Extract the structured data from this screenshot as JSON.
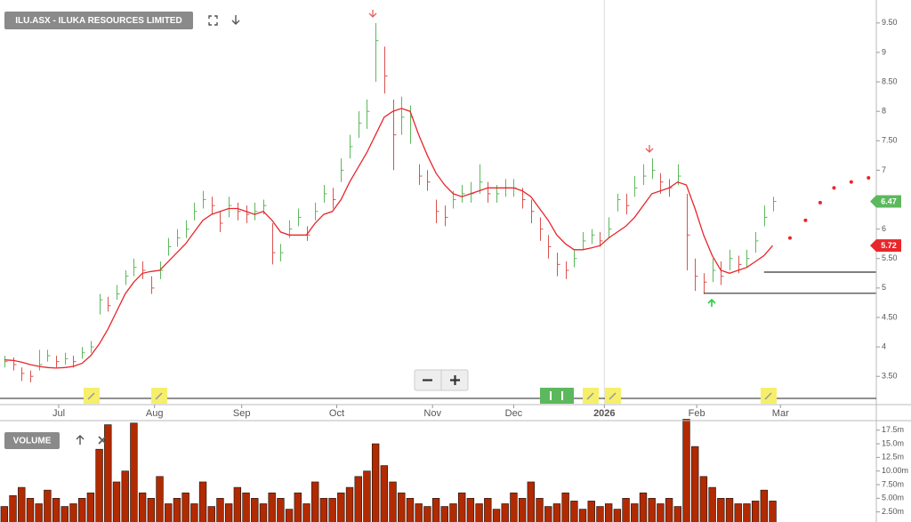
{
  "chart_data": [
    {
      "type": "ohlc",
      "title": "ILU.ASX - ILUKA RESOURCES LIMITED",
      "up_color": "#5cb85c",
      "down_color": "#d9534f",
      "high": [
        3.85,
        3.82,
        3.65,
        3.6,
        3.95,
        3.95,
        3.85,
        3.9,
        3.85,
        4.0,
        4.1,
        4.9,
        4.85,
        5.05,
        5.3,
        5.5,
        5.45,
        5.2,
        5.45,
        5.85,
        6.0,
        6.15,
        6.45,
        6.65,
        6.55,
        6.3,
        6.55,
        6.45,
        6.4,
        6.45,
        6.5,
        6.1,
        5.75,
        6.15,
        6.35,
        6.05,
        6.45,
        6.75,
        6.7,
        7.2,
        7.6,
        8.0,
        8.2,
        9.5,
        9.1,
        8.2,
        8.25,
        8.1,
        7.1,
        7.0,
        6.5,
        6.4,
        6.65,
        6.75,
        6.8,
        7.1,
        6.8,
        6.75,
        6.85,
        6.85,
        6.7,
        6.5,
        6.2,
        5.9,
        5.6,
        5.45,
        5.65,
        5.95,
        6.0,
        5.95,
        6.2,
        6.6,
        6.6,
        6.9,
        7.1,
        7.2,
        6.95,
        6.85,
        7.1,
        6.6,
        5.5,
        5.25,
        5.5,
        5.45,
        5.65,
        5.55,
        5.65,
        5.95,
        6.4,
        6.55
      ],
      "low": [
        3.65,
        3.6,
        3.42,
        3.4,
        3.6,
        3.75,
        3.65,
        3.7,
        3.65,
        3.8,
        3.9,
        4.55,
        4.6,
        4.8,
        5.05,
        5.2,
        5.15,
        4.9,
        5.15,
        5.55,
        5.7,
        5.85,
        6.15,
        6.35,
        6.25,
        5.95,
        6.2,
        6.15,
        6.1,
        6.15,
        6.25,
        5.4,
        5.45,
        5.85,
        6.05,
        5.8,
        6.15,
        6.45,
        6.35,
        6.8,
        7.2,
        7.55,
        7.7,
        8.5,
        8.3,
        7.0,
        7.6,
        7.45,
        6.75,
        6.65,
        6.1,
        6.05,
        6.35,
        6.45,
        6.45,
        6.6,
        6.45,
        6.45,
        6.55,
        6.55,
        6.35,
        6.1,
        5.8,
        5.5,
        5.2,
        5.15,
        5.35,
        5.65,
        5.75,
        5.7,
        5.85,
        6.3,
        6.25,
        6.55,
        6.75,
        6.85,
        6.6,
        6.55,
        6.75,
        5.3,
        4.95,
        4.9,
        5.1,
        5.05,
        5.3,
        5.25,
        5.35,
        5.6,
        6.05,
        6.3
      ],
      "close": [
        3.75,
        3.7,
        3.55,
        3.5,
        3.7,
        3.85,
        3.75,
        3.8,
        3.75,
        3.9,
        4.0,
        4.8,
        4.7,
        4.9,
        5.2,
        5.35,
        5.3,
        5.0,
        5.3,
        5.7,
        5.85,
        6.0,
        6.3,
        6.5,
        6.4,
        6.1,
        6.4,
        6.3,
        6.25,
        6.3,
        6.4,
        5.6,
        5.6,
        6.0,
        6.2,
        5.9,
        6.3,
        6.6,
        6.5,
        7.0,
        7.4,
        7.8,
        8.0,
        9.2,
        8.6,
        7.6,
        7.9,
        7.9,
        6.9,
        6.8,
        6.3,
        6.2,
        6.5,
        6.6,
        6.6,
        6.8,
        6.6,
        6.6,
        6.7,
        6.7,
        6.5,
        6.3,
        6.0,
        5.7,
        5.4,
        5.3,
        5.5,
        5.8,
        5.9,
        5.8,
        6.0,
        6.5,
        6.4,
        6.7,
        6.9,
        7.0,
        6.8,
        6.7,
        6.9,
        5.9,
        5.2,
        5.1,
        5.3,
        5.2,
        5.5,
        5.4,
        5.5,
        5.8,
        6.2,
        6.47
      ],
      "ma": {
        "color": "#e8262b",
        "values": [
          3.78,
          3.77,
          3.74,
          3.7,
          3.67,
          3.65,
          3.64,
          3.65,
          3.67,
          3.72,
          3.85,
          4.05,
          4.3,
          4.6,
          4.9,
          5.1,
          5.25,
          5.28,
          5.3,
          5.45,
          5.6,
          5.75,
          5.95,
          6.15,
          6.25,
          6.3,
          6.35,
          6.35,
          6.3,
          6.25,
          6.3,
          6.15,
          5.95,
          5.9,
          5.9,
          5.9,
          6.1,
          6.25,
          6.3,
          6.5,
          6.8,
          7.05,
          7.3,
          7.6,
          7.9,
          8.0,
          8.05,
          8.0,
          7.6,
          7.25,
          6.95,
          6.75,
          6.6,
          6.55,
          6.6,
          6.65,
          6.7,
          6.7,
          6.7,
          6.7,
          6.65,
          6.55,
          6.35,
          6.15,
          5.9,
          5.75,
          5.65,
          5.65,
          5.68,
          5.72,
          5.85,
          5.95,
          6.05,
          6.2,
          6.4,
          6.6,
          6.65,
          6.7,
          6.8,
          6.75,
          6.35,
          5.9,
          5.55,
          5.3,
          5.25,
          5.3,
          5.35,
          5.45,
          5.55,
          5.72
        ]
      },
      "forecast": {
        "color": "#e8262b",
        "x": [
          91.0,
          92.8,
          94.5,
          96.1,
          98.1,
          100.1
        ],
        "values": [
          5.85,
          6.15,
          6.45,
          6.7,
          6.8,
          6.87
        ]
      },
      "levels": [
        {
          "value": 5.27,
          "from": 88
        },
        {
          "value": 4.91,
          "from": 81
        }
      ],
      "xlim": [
        -0.5,
        101
      ],
      "xticks": [
        {
          "value": 6.3,
          "label": "Jul"
        },
        {
          "value": 17.4,
          "label": "Aug"
        },
        {
          "value": 27.5,
          "label": "Sep"
        },
        {
          "value": 38.5,
          "label": "Oct"
        },
        {
          "value": 49.6,
          "label": "Nov"
        },
        {
          "value": 59,
          "label": "Dec"
        },
        {
          "value": 69.5,
          "label": "2026"
        },
        {
          "value": 80.2,
          "label": "Feb"
        },
        {
          "value": 89.9,
          "label": "Mar"
        }
      ],
      "ylim": [
        3.02,
        9.89
      ],
      "yticks": [
        {
          "value": 3.5,
          "label": "3.50"
        },
        4,
        {
          "value": 4.5,
          "label": "4.50"
        },
        5,
        {
          "value": 5.5,
          "label": "5.50"
        },
        6,
        {
          "value": 6.5,
          "label": "6.50"
        },
        7,
        {
          "value": 7.5,
          "label": "7.50"
        },
        8,
        {
          "value": 8.5,
          "label": "8.50"
        },
        9,
        {
          "value": 9.5,
          "label": "9.50"
        }
      ],
      "ytick_decimals_note_free": true
    },
    {
      "type": "bar",
      "title": "VOLUME",
      "color": "#b22a00",
      "values": [
        3.5,
        5.5,
        7,
        5,
        4,
        6.5,
        5,
        3.5,
        4,
        5,
        6,
        14,
        18.5,
        8,
        10,
        18.8,
        6,
        5,
        9,
        4,
        5,
        6,
        4,
        8,
        3.5,
        5,
        4,
        7,
        6,
        5,
        4,
        6,
        5,
        3,
        6,
        4,
        8,
        5,
        5,
        6,
        7,
        9,
        10,
        15,
        11,
        8,
        6,
        5,
        4,
        3.5,
        5,
        3.5,
        4,
        6,
        5,
        4,
        5,
        3,
        4,
        6,
        5,
        8,
        5,
        3.5,
        4,
        6,
        4.5,
        3,
        4.5,
        3.5,
        4,
        3,
        5,
        4,
        6,
        5,
        4,
        5,
        3.5,
        19.5,
        14.5,
        9,
        7,
        5,
        5,
        4,
        4,
        4.5,
        6.5,
        4.5
      ],
      "ylim": [
        0.65,
        19.25
      ],
      "yticks": [
        {
          "value": 2.5,
          "label": "2.50m"
        },
        {
          "value": 5,
          "label": "5.00m"
        },
        {
          "value": 7.5,
          "label": "7.50m"
        },
        {
          "value": 10,
          "label": "10.00m"
        },
        {
          "value": 12.5,
          "label": "12.5m"
        },
        {
          "value": 15,
          "label": "15.0m"
        },
        {
          "value": 17.5,
          "label": "17.5m"
        }
      ]
    }
  ]
}
